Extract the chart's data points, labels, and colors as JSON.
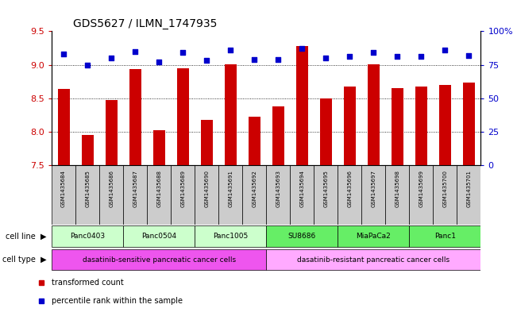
{
  "title": "GDS5627 / ILMN_1747935",
  "samples": [
    "GSM1435684",
    "GSM1435685",
    "GSM1435686",
    "GSM1435687",
    "GSM1435688",
    "GSM1435689",
    "GSM1435690",
    "GSM1435691",
    "GSM1435692",
    "GSM1435693",
    "GSM1435694",
    "GSM1435695",
    "GSM1435696",
    "GSM1435697",
    "GSM1435698",
    "GSM1435699",
    "GSM1435700",
    "GSM1435701"
  ],
  "transformed_count": [
    8.64,
    7.95,
    8.47,
    8.93,
    8.03,
    8.95,
    8.18,
    9.01,
    8.22,
    8.38,
    9.28,
    8.5,
    8.68,
    9.01,
    8.65,
    8.68,
    8.7,
    8.74
  ],
  "percentile_rank": [
    83,
    75,
    80,
    85,
    77,
    84,
    78,
    86,
    79,
    79,
    87,
    80,
    81,
    84,
    81,
    81,
    86,
    82
  ],
  "ylim_left": [
    7.5,
    9.5
  ],
  "ylim_right": [
    0,
    100
  ],
  "yticks_left": [
    7.5,
    8.0,
    8.5,
    9.0,
    9.5
  ],
  "yticks_right": [
    0,
    25,
    50,
    75,
    100
  ],
  "bar_color": "#cc0000",
  "scatter_color": "#0000cc",
  "bar_width": 0.5,
  "cell_lines": [
    {
      "label": "Panc0403",
      "start": 0,
      "end": 2,
      "color": "#ccffcc"
    },
    {
      "label": "Panc0504",
      "start": 3,
      "end": 5,
      "color": "#ccffcc"
    },
    {
      "label": "Panc1005",
      "start": 6,
      "end": 8,
      "color": "#ccffcc"
    },
    {
      "label": "SU8686",
      "start": 9,
      "end": 11,
      "color": "#66ee66"
    },
    {
      "label": "MiaPaCa2",
      "start": 12,
      "end": 14,
      "color": "#66ee66"
    },
    {
      "label": "Panc1",
      "start": 15,
      "end": 17,
      "color": "#66ee66"
    }
  ],
  "cell_types": [
    {
      "label": "dasatinib-sensitive pancreatic cancer cells",
      "start": 0,
      "end": 8,
      "color": "#ee55ee"
    },
    {
      "label": "dasatinib-resistant pancreatic cancer cells",
      "start": 9,
      "end": 17,
      "color": "#ffaaff"
    }
  ],
  "sample_box_color": "#cccccc",
  "legend_bar_label": "transformed count",
  "legend_scatter_label": "percentile rank within the sample",
  "cell_line_label": "cell line",
  "cell_type_label": "cell type"
}
